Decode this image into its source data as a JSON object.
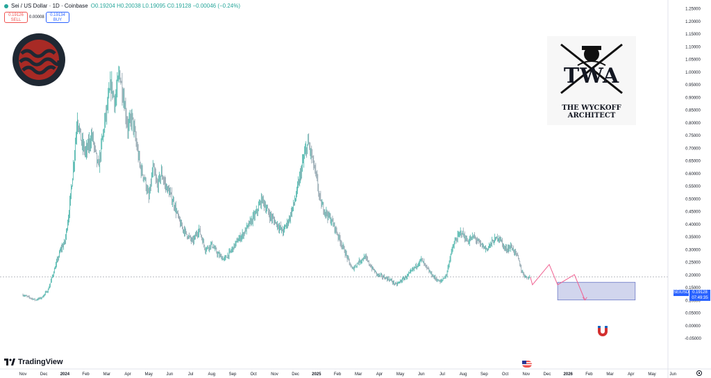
{
  "header": {
    "symbol_title": "Sei / US Dollar · 1D · Coinbase",
    "ohlc": "O0.19204 H0.20038 L0.19095 C0.19128 −0.00046 (−0.24%)",
    "sell_price": "0.19126",
    "sell_label": "SELL",
    "spread": "0.00008",
    "buy_price": "0.19134",
    "buy_label": "BUY"
  },
  "price_tag": {
    "symbol": "SEIUSD",
    "price": "0.19128",
    "countdown": "07:49:35"
  },
  "branding": {
    "tradingview": "TradingView"
  },
  "watermark": {
    "monogram": "TWA",
    "line1": "THE WYCKOFF",
    "line2": "ARCHITECT"
  },
  "colors": {
    "up": "#26a69a",
    "down": "#78909c",
    "projection": "#f06292",
    "zone_fill": "#c5cae9",
    "zone_border": "#5c6bc0",
    "price_tag": "#2962ff",
    "sei_logo": "#a82a25"
  },
  "icons": [
    "sei-logo-icon",
    "twa-logo-icon",
    "tradingview-logo-icon",
    "magnet-icon",
    "us-flag-icon",
    "settings-icon"
  ],
  "chart_data": {
    "type": "line",
    "title": "Sei / US Dollar · 1D · Coinbase",
    "x_tick_labels": [
      "Nov",
      "Dec",
      "2024",
      "Feb",
      "Mar",
      "Apr",
      "May",
      "Jun",
      "Jul",
      "Aug",
      "Sep",
      "Oct",
      "Nov",
      "Dec",
      "2025",
      "Feb",
      "Mar",
      "Apr",
      "May",
      "Jun",
      "Jul",
      "Aug",
      "Sep",
      "Oct",
      "Nov",
      "Dec",
      "2026",
      "Feb",
      "Mar",
      "Apr",
      "May",
      "Jun"
    ],
    "y_tick_labels": [
      "1.25000",
      "1.20000",
      "1.15000",
      "1.10000",
      "1.05000",
      "1.00000",
      "0.95000",
      "0.90000",
      "0.85000",
      "0.80000",
      "0.75000",
      "0.70000",
      "0.65000",
      "0.60000",
      "0.55000",
      "0.50000",
      "0.45000",
      "0.40000",
      "0.35000",
      "0.30000",
      "0.25000",
      "0.20000",
      "0.15000",
      "0.10000",
      "0.05000",
      "0.00000",
      "-0.05000"
    ],
    "ylim": [
      -0.05,
      1.25
    ],
    "x_unit": "months since Nov 2023",
    "price_path": [
      [
        0,
        0.12
      ],
      [
        0.3,
        0.11
      ],
      [
        0.6,
        0.1
      ],
      [
        0.9,
        0.11
      ],
      [
        1.2,
        0.14
      ],
      [
        1.5,
        0.22
      ],
      [
        1.8,
        0.3
      ],
      [
        2.0,
        0.33
      ],
      [
        2.2,
        0.45
      ],
      [
        2.4,
        0.62
      ],
      [
        2.6,
        0.82
      ],
      [
        2.8,
        0.72
      ],
      [
        3.0,
        0.68
      ],
      [
        3.3,
        0.75
      ],
      [
        3.6,
        0.62
      ],
      [
        3.9,
        0.8
      ],
      [
        4.2,
        0.95
      ],
      [
        4.4,
        0.88
      ],
      [
        4.6,
        1.0
      ],
      [
        4.8,
        0.9
      ],
      [
        5.0,
        0.78
      ],
      [
        5.2,
        0.82
      ],
      [
        5.4,
        0.72
      ],
      [
        5.6,
        0.62
      ],
      [
        5.8,
        0.58
      ],
      [
        6.0,
        0.5
      ],
      [
        6.2,
        0.62
      ],
      [
        6.4,
        0.55
      ],
      [
        6.6,
        0.6
      ],
      [
        6.8,
        0.55
      ],
      [
        7.0,
        0.52
      ],
      [
        7.2,
        0.48
      ],
      [
        7.5,
        0.4
      ],
      [
        7.8,
        0.36
      ],
      [
        8.1,
        0.33
      ],
      [
        8.4,
        0.38
      ],
      [
        8.7,
        0.3
      ],
      [
        9.0,
        0.32
      ],
      [
        9.3,
        0.28
      ],
      [
        9.6,
        0.26
      ],
      [
        9.9,
        0.29
      ],
      [
        10.2,
        0.33
      ],
      [
        10.5,
        0.36
      ],
      [
        10.8,
        0.4
      ],
      [
        11.1,
        0.44
      ],
      [
        11.4,
        0.5
      ],
      [
        11.6,
        0.46
      ],
      [
        11.8,
        0.43
      ],
      [
        12.1,
        0.4
      ],
      [
        12.4,
        0.37
      ],
      [
        12.7,
        0.42
      ],
      [
        13.0,
        0.5
      ],
      [
        13.2,
        0.58
      ],
      [
        13.4,
        0.66
      ],
      [
        13.6,
        0.72
      ],
      [
        13.8,
        0.66
      ],
      [
        14.0,
        0.58
      ],
      [
        14.2,
        0.48
      ],
      [
        14.5,
        0.44
      ],
      [
        14.8,
        0.4
      ],
      [
        15.1,
        0.34
      ],
      [
        15.4,
        0.28
      ],
      [
        15.7,
        0.22
      ],
      [
        16.0,
        0.25
      ],
      [
        16.3,
        0.27
      ],
      [
        16.6,
        0.23
      ],
      [
        16.9,
        0.2
      ],
      [
        17.2,
        0.19
      ],
      [
        17.5,
        0.18
      ],
      [
        17.8,
        0.16
      ],
      [
        18.1,
        0.18
      ],
      [
        18.4,
        0.2
      ],
      [
        18.7,
        0.23
      ],
      [
        19.0,
        0.26
      ],
      [
        19.3,
        0.22
      ],
      [
        19.6,
        0.19
      ],
      [
        19.9,
        0.17
      ],
      [
        20.2,
        0.2
      ],
      [
        20.4,
        0.28
      ],
      [
        20.6,
        0.33
      ],
      [
        20.9,
        0.37
      ],
      [
        21.2,
        0.33
      ],
      [
        21.5,
        0.35
      ],
      [
        21.8,
        0.32
      ],
      [
        22.1,
        0.3
      ],
      [
        22.4,
        0.33
      ],
      [
        22.7,
        0.35
      ],
      [
        23.0,
        0.3
      ],
      [
        23.3,
        0.31
      ],
      [
        23.6,
        0.27
      ],
      [
        23.8,
        0.21
      ],
      [
        24.0,
        0.19
      ],
      [
        24.2,
        0.19
      ]
    ],
    "projection_path": [
      [
        24.2,
        0.19
      ],
      [
        24.3,
        0.16
      ],
      [
        25.1,
        0.24
      ],
      [
        25.5,
        0.16
      ],
      [
        26.3,
        0.2
      ],
      [
        26.8,
        0.1
      ]
    ],
    "target_zone": {
      "x0": 25.5,
      "x1": 29.2,
      "y0": 0.1,
      "y1": 0.17
    },
    "current_price_line": 0.19128
  }
}
